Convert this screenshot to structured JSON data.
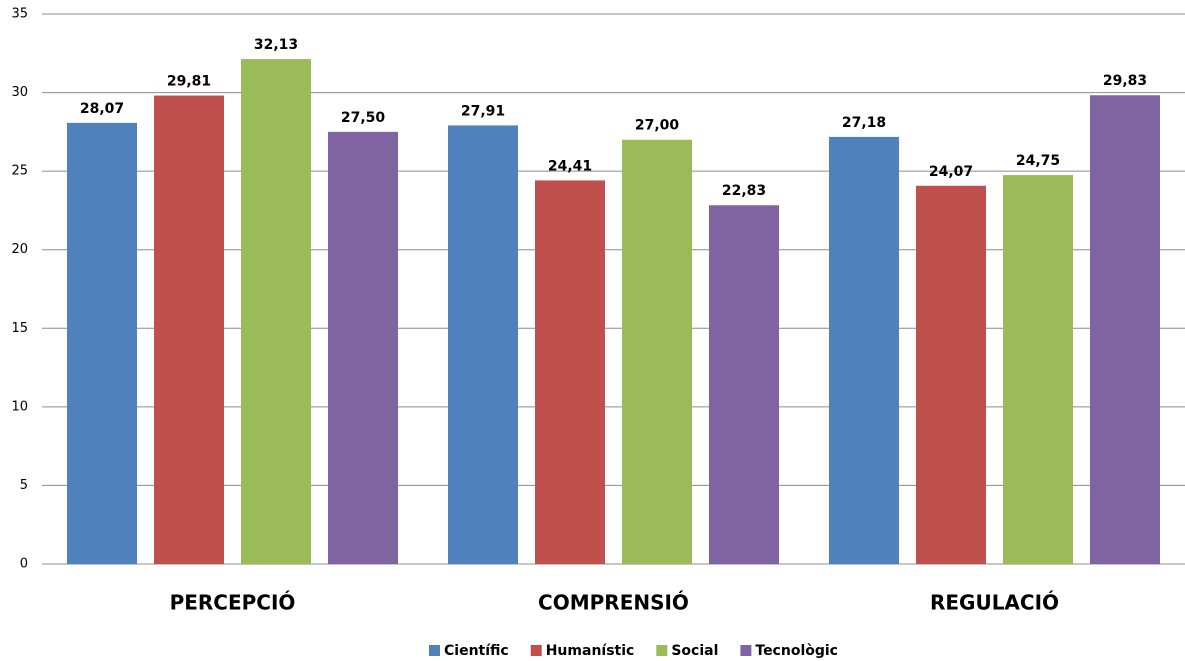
{
  "chart_data": {
    "type": "bar",
    "categories": [
      "PERCEPCIÓ",
      "COMPRENSIÓ",
      "REGULACIÓ"
    ],
    "series": [
      {
        "name": "Científic",
        "color": "#4f81bd",
        "values": [
          28.07,
          27.91,
          27.18
        ],
        "value_labels": [
          "28,07",
          "27,91",
          "27,18"
        ]
      },
      {
        "name": "Humanístic",
        "color": "#c0504d",
        "values": [
          29.81,
          24.41,
          24.07
        ],
        "value_labels": [
          "29,81",
          "24,41",
          "24,07"
        ]
      },
      {
        "name": "Social",
        "color": "#9bbb59",
        "values": [
          32.13,
          27.0,
          24.75
        ],
        "value_labels": [
          "32,13",
          "27,00",
          "24,75"
        ]
      },
      {
        "name": "Tecnològic",
        "color": "#8064a2",
        "values": [
          27.5,
          22.83,
          29.83
        ],
        "value_labels": [
          "27,50",
          "22,83",
          "29,83"
        ]
      }
    ],
    "ylim": [
      0,
      35
    ],
    "yticks": [
      0,
      5,
      10,
      15,
      20,
      25,
      30,
      35
    ],
    "grid": true,
    "legend": "bottom"
  }
}
